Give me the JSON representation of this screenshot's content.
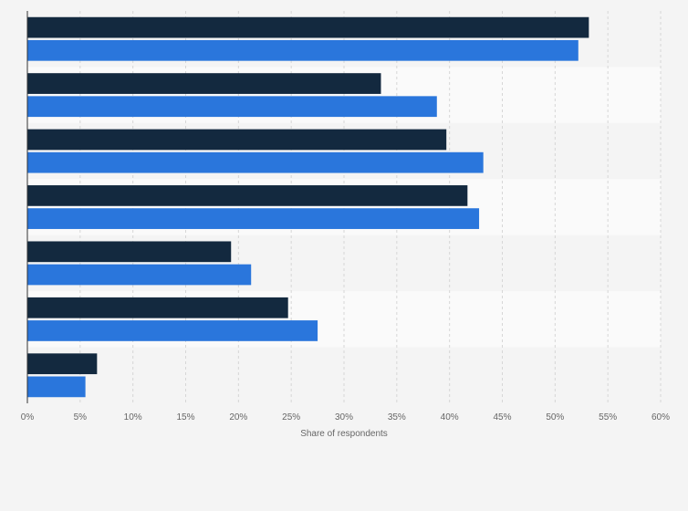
{
  "chart_data": {
    "type": "bar",
    "orientation": "horizontal",
    "categories": [
      "",
      "",
      "",
      "",
      "",
      "",
      ""
    ],
    "series": [
      {
        "values": [
          53.2,
          33.5,
          39.7,
          41.7,
          19.3,
          24.7,
          6.6
        ]
      },
      {
        "values": [
          52.2,
          38.8,
          43.2,
          42.8,
          21.2,
          27.5,
          5.5
        ]
      }
    ],
    "colors": [
      "#13293f",
      "#2a76dc"
    ],
    "xlabel": "Share of respondents",
    "ylabel": "",
    "xlim": [
      0,
      60
    ],
    "tick_values": [
      0,
      5,
      10,
      15,
      20,
      25,
      30,
      35,
      40,
      45,
      50,
      55,
      60
    ],
    "tick_labels": [
      "0%",
      "5%",
      "10%",
      "15%",
      "20%",
      "25%",
      "30%",
      "35%",
      "40%",
      "45%",
      "50%",
      "55%",
      "60%"
    ],
    "grid": true,
    "legend": false
  }
}
